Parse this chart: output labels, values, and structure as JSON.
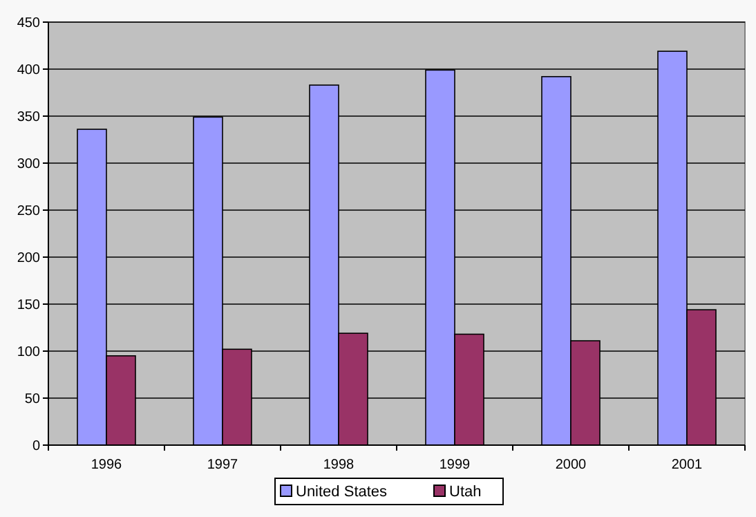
{
  "chart_data": {
    "type": "bar",
    "categories": [
      "1996",
      "1997",
      "1998",
      "1999",
      "2000",
      "2001"
    ],
    "series": [
      {
        "name": "United States",
        "color": "#9999ff",
        "values": [
          336,
          349,
          383,
          399,
          392,
          419
        ]
      },
      {
        "name": "Utah",
        "color": "#993366",
        "values": [
          95,
          102,
          119,
          118,
          111,
          144
        ]
      }
    ],
    "ylim": [
      0,
      450
    ],
    "yticks": [
      0,
      50,
      100,
      150,
      200,
      250,
      300,
      350,
      400,
      450
    ],
    "grid": "y",
    "legend": "bottom"
  }
}
